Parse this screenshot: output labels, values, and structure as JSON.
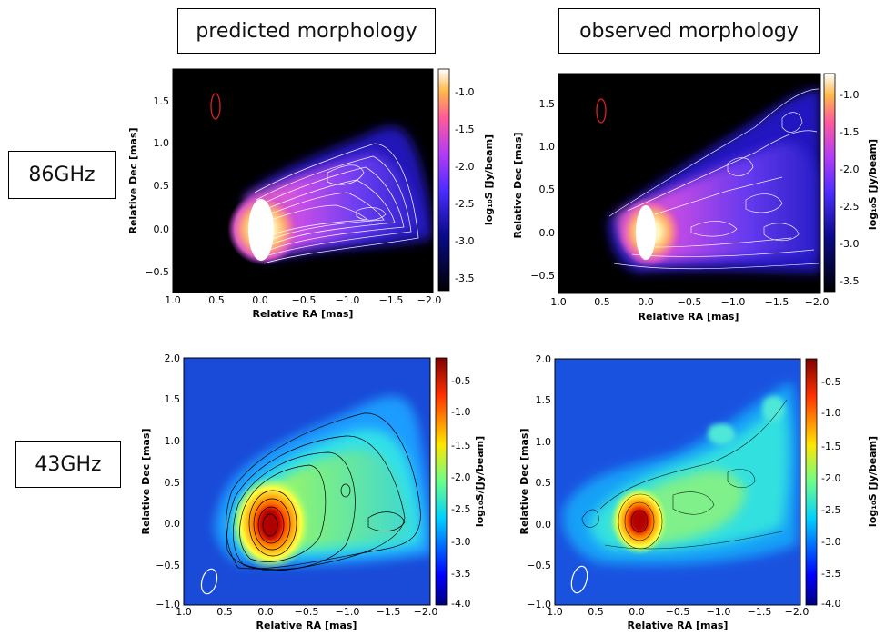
{
  "headers": {
    "predicted": "predicted morphology",
    "observed": "observed morphology"
  },
  "frequencies": {
    "f86": "86GHz",
    "f43": "43GHz"
  },
  "axes": {
    "xlabel": "Relative RA [mas]",
    "ylabel": "Relative Dec [mas]"
  },
  "colorbar_labels": {
    "top": "log₁₀S [Jy/beam]",
    "bottom_left": "log₁₀S/[Jy/beam]",
    "bottom_right": "log₁₀S [Jy/beam]"
  },
  "colorbar_ticks": {
    "top": [
      "-1.0",
      "-1.5",
      "-2.0",
      "-2.5",
      "-3.0",
      "-3.5"
    ],
    "bottom": [
      "-0.5",
      "-1.0",
      "-1.5",
      "-2.0",
      "-2.5",
      "-3.0",
      "-3.5",
      "-4.0"
    ]
  },
  "ticks": {
    "x_top": [
      "1.0",
      "0.5",
      "0.0",
      "−0.5",
      "−1.0",
      "−1.5",
      "−2.0"
    ],
    "y_top": [
      "1.5",
      "1.0",
      "0.5",
      "0.0",
      "−0.5"
    ],
    "x_bottom": [
      "1.0",
      "0.5",
      "0.0",
      "−0.5",
      "−1.0",
      "−1.5",
      "−2.0"
    ],
    "y_bottom": [
      "2.0",
      "1.5",
      "1.0",
      "0.5",
      "0.0",
      "−0.5",
      "−1.0"
    ]
  },
  "colors": {
    "beam_top": "#e02020",
    "beam_bottom": "#ffffff"
  }
}
